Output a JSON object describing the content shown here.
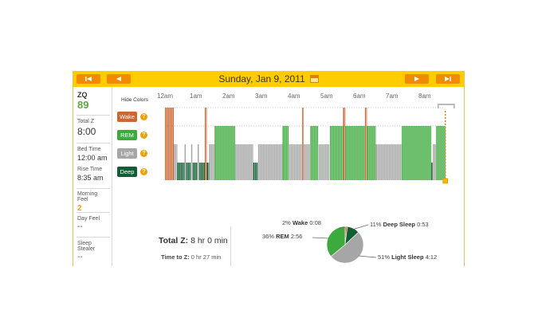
{
  "header": {
    "date": "Sunday, Jan 9, 2011",
    "prev_week_icon": "skip-back-icon",
    "prev_day_icon": "arrow-left-icon",
    "next_day_icon": "arrow-right-icon",
    "next_week_icon": "skip-forward-icon",
    "calendar_icon": "calendar-icon"
  },
  "sidebar": {
    "zq_label": "ZQ",
    "zq_value": "89",
    "total_z_label": "Total Z",
    "total_z_value": "8:00",
    "bed_time_label": "Bed Time",
    "bed_time_value": "12:00 am",
    "rise_time_label": "Rise Time",
    "rise_time_value": "8:35 am",
    "morning_feel_label": "Morning Feel",
    "morning_feel_value": "2",
    "day_feel_label": "Day Feel",
    "day_feel_value": "--",
    "sleep_stealer_label": "Sleep Stealer",
    "sleep_stealer_value": "--"
  },
  "chart_controls": {
    "hide_colors": "Hide Colors"
  },
  "time_labels": [
    "12am",
    "1am",
    "2am",
    "3am",
    "4am",
    "5am",
    "6am",
    "7am",
    "8am"
  ],
  "legend": [
    {
      "label": "Wake",
      "color": "#cc6633"
    },
    {
      "label": "REM",
      "color": "#3daa3d"
    },
    {
      "label": "Light",
      "color": "#a6a6a6"
    },
    {
      "label": "Deep",
      "color": "#115e34"
    }
  ],
  "summary": {
    "total_z_label": "Total Z:",
    "total_z_value": "8 hr 0 min",
    "time_to_z_label": "Time to Z:",
    "time_to_z_value": "0 hr 27 min"
  },
  "pie": {
    "slices": [
      {
        "stage": "Wake",
        "percent": "2%",
        "time": "0:08",
        "color": "#cc6633",
        "value": 2
      },
      {
        "stage": "Deep Sleep",
        "percent": "11%",
        "time": "0:53",
        "color": "#115e34",
        "value": 11
      },
      {
        "stage": "Light Sleep",
        "percent": "51%",
        "time": "4:12",
        "color": "#a6a6a6",
        "value": 51
      },
      {
        "stage": "REM",
        "percent": "36%",
        "time": "2:56",
        "color": "#3daa3d",
        "value": 36
      }
    ]
  },
  "chart_data": {
    "type": "bar",
    "x_unit": "hours after 12am",
    "categories": [
      "Wake",
      "REM",
      "Light",
      "Deep"
    ],
    "segments": [
      {
        "stage": "Wake",
        "start": 0.0,
        "end": 0.27
      },
      {
        "stage": "Light",
        "start": 0.27,
        "end": 0.38
      },
      {
        "stage": "Deep",
        "start": 0.38,
        "end": 0.6
      },
      {
        "stage": "Light",
        "start": 0.6,
        "end": 0.65
      },
      {
        "stage": "Deep",
        "start": 0.65,
        "end": 0.8
      },
      {
        "stage": "Light",
        "start": 0.8,
        "end": 0.85
      },
      {
        "stage": "Deep",
        "start": 0.85,
        "end": 1.0
      },
      {
        "stage": "Light",
        "start": 1.0,
        "end": 1.05
      },
      {
        "stage": "Deep",
        "start": 1.05,
        "end": 1.22
      },
      {
        "stage": "Wake",
        "start": 1.22,
        "end": 1.28
      },
      {
        "stage": "Deep",
        "start": 1.28,
        "end": 1.35
      },
      {
        "stage": "Light",
        "start": 1.35,
        "end": 1.52
      },
      {
        "stage": "REM",
        "start": 1.52,
        "end": 2.15
      },
      {
        "stage": "Light",
        "start": 2.15,
        "end": 2.7
      },
      {
        "stage": "Deep",
        "start": 2.7,
        "end": 2.85
      },
      {
        "stage": "Light",
        "start": 2.85,
        "end": 3.6
      },
      {
        "stage": "REM",
        "start": 3.6,
        "end": 3.8
      },
      {
        "stage": "Light",
        "start": 3.8,
        "end": 4.2
      },
      {
        "stage": "Wake",
        "start": 4.2,
        "end": 4.25
      },
      {
        "stage": "Light",
        "start": 4.25,
        "end": 4.45
      },
      {
        "stage": "REM",
        "start": 4.45,
        "end": 4.7
      },
      {
        "stage": "Light",
        "start": 4.7,
        "end": 5.05
      },
      {
        "stage": "REM",
        "start": 5.05,
        "end": 5.45
      },
      {
        "stage": "Wake",
        "start": 5.45,
        "end": 5.52
      },
      {
        "stage": "REM",
        "start": 5.52,
        "end": 6.12
      },
      {
        "stage": "Wake",
        "start": 6.12,
        "end": 6.18
      },
      {
        "stage": "REM",
        "start": 6.18,
        "end": 6.45
      },
      {
        "stage": "Light",
        "start": 6.45,
        "end": 7.25
      },
      {
        "stage": "REM",
        "start": 7.25,
        "end": 8.15
      },
      {
        "stage": "Deep",
        "start": 8.15,
        "end": 8.2
      },
      {
        "stage": "Light",
        "start": 8.2,
        "end": 8.3
      },
      {
        "stage": "REM",
        "start": 8.3,
        "end": 8.58
      }
    ],
    "rise_marker_hours": 8.58,
    "xlim": [
      0,
      9
    ]
  }
}
